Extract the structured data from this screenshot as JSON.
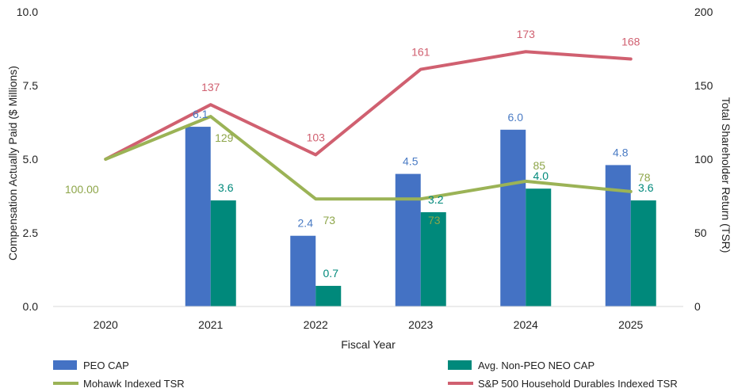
{
  "chart_data": {
    "type": "bar",
    "xlabel": "Fiscal Year",
    "ylabel": "Compensation Actually Paid ($ Millions)",
    "y2label": "Total Shareholder Return (TSR)",
    "categories": [
      "2020",
      "2021",
      "2022",
      "2023",
      "2024",
      "2025"
    ],
    "ylim": [
      0,
      10
    ],
    "y2lim": [
      0,
      200
    ],
    "yticks": [
      "0.0",
      "2.5",
      "5.0",
      "7.5",
      "10.0"
    ],
    "y2ticks": [
      "0",
      "50",
      "100",
      "150",
      "200"
    ],
    "grid": false,
    "legend_position": "bottom",
    "series": [
      {
        "name": "PEO CAP",
        "type": "bar",
        "axis": "left",
        "color": "#4472C4",
        "values": [
          null,
          6.1,
          2.4,
          4.5,
          6.0,
          4.8
        ],
        "labels": [
          "",
          "6.1",
          "2.4",
          "4.5",
          "6.0",
          "4.8"
        ]
      },
      {
        "name": "Avg. Non-PEO NEO CAP",
        "type": "bar",
        "axis": "left",
        "color": "#00897B",
        "values": [
          null,
          3.6,
          0.7,
          3.2,
          4.0,
          3.6
        ],
        "labels": [
          "",
          "3.6",
          "0.7",
          "3.2",
          "4.0",
          "3.6"
        ]
      },
      {
        "name": "Mohawk Indexed TSR",
        "type": "line",
        "axis": "right",
        "color": "#9BB356",
        "values": [
          100,
          129,
          73,
          73,
          85,
          78
        ],
        "labels": [
          "100.00",
          "129",
          "73",
          "73",
          "85",
          "78"
        ]
      },
      {
        "name": "S&P 500 Household Durables Indexed TSR",
        "type": "line",
        "axis": "right",
        "color": "#D06070",
        "values": [
          100,
          137,
          103,
          161,
          173,
          168
        ],
        "labels": [
          "",
          "137",
          "103",
          "161",
          "173",
          "168"
        ]
      }
    ]
  }
}
